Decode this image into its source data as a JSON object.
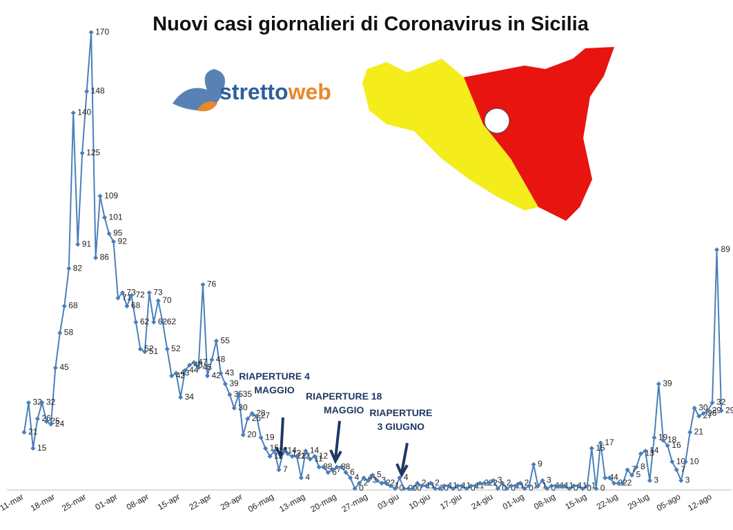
{
  "chart_data": {
    "type": "line",
    "title": "Nuovi casi giornalieri di Coronavirus in Sicilia",
    "logo": [
      "stretto",
      "web"
    ],
    "start": "11-mar",
    "categories": [
      "11-mar",
      null,
      null,
      null,
      null,
      null,
      null,
      "18-mar",
      null,
      null,
      null,
      null,
      null,
      null,
      "25-mar",
      null,
      null,
      null,
      null,
      null,
      null,
      "01-apr",
      null,
      null,
      null,
      null,
      null,
      null,
      "08-apr",
      null,
      null,
      null,
      null,
      null,
      null,
      "15-apr",
      null,
      null,
      null,
      null,
      null,
      null,
      "22-apr",
      null,
      null,
      null,
      null,
      null,
      null,
      "29-apr",
      null,
      null,
      null,
      null,
      null,
      null,
      "06-mag",
      null,
      null,
      null,
      null,
      null,
      null,
      "13-mag",
      null,
      null,
      null,
      null,
      null,
      null,
      "20-mag",
      null,
      null,
      null,
      null,
      null,
      null,
      "27-mag",
      null,
      null,
      null,
      null,
      null,
      null,
      "03-giu",
      null,
      null,
      null,
      null,
      null,
      null,
      "10-giu",
      null,
      null,
      null,
      null,
      null,
      null,
      "17-giu",
      null,
      null,
      null,
      null,
      null,
      null,
      "24-giu",
      null,
      null,
      null,
      null,
      null,
      null,
      "01-lug",
      null,
      null,
      null,
      null,
      null,
      null,
      "08-lug",
      null,
      null,
      null,
      null,
      null,
      null,
      "15-lug",
      null,
      null,
      null,
      null,
      null,
      null,
      "22-lug",
      null,
      null,
      null,
      null,
      null,
      null,
      "29-lug",
      null,
      null,
      null,
      null,
      null,
      null,
      "05-ago",
      null,
      null,
      null,
      null,
      null,
      null,
      "12-ago",
      null,
      null
    ],
    "values": [
      21,
      32,
      15,
      26,
      32,
      25,
      24,
      45,
      58,
      68,
      82,
      140,
      91,
      125,
      148,
      170,
      86,
      109,
      101,
      95,
      92,
      71,
      73,
      68,
      72,
      62,
      52,
      51,
      73,
      62,
      70,
      62,
      52,
      42,
      43,
      34,
      44,
      46,
      47,
      45,
      76,
      42,
      48,
      55,
      43,
      39,
      35,
      30,
      35,
      20,
      26,
      28,
      27,
      19,
      15,
      12,
      14,
      7,
      14,
      13,
      12,
      12,
      4,
      14,
      11,
      12,
      8,
      8,
      6,
      7,
      8,
      8,
      6,
      4,
      0,
      2,
      4,
      3,
      5,
      3,
      2,
      2,
      1,
      0,
      4,
      0,
      0,
      0,
      2,
      1,
      1,
      2,
      0,
      0,
      1,
      1,
      0,
      1,
      1,
      0,
      1,
      1,
      2,
      2,
      2,
      3,
      0,
      2,
      0,
      1,
      1,
      2,
      0,
      1,
      9,
      1,
      3,
      0,
      1,
      1,
      1,
      1,
      0,
      1,
      1,
      0,
      1,
      15,
      0,
      17,
      4,
      4,
      2,
      2,
      2,
      7,
      5,
      8,
      13,
      14,
      3,
      19,
      39,
      18,
      16,
      10,
      7,
      3,
      10,
      21,
      30,
      27,
      28,
      29,
      32,
      89,
      29
    ],
    "color": "#4a7ebb",
    "ylim": [
      0,
      180
    ],
    "annotations": [
      {
        "lines": [
          "RIAPERTURE 4",
          "MAGGIO"
        ],
        "index": 56
      },
      {
        "lines": [
          "RIAPERTURE 18",
          "MAGGIO"
        ],
        "index": 70
      },
      {
        "lines": [
          "RIAPERTURE",
          "3 GIUGNO"
        ],
        "index": 84
      }
    ]
  }
}
